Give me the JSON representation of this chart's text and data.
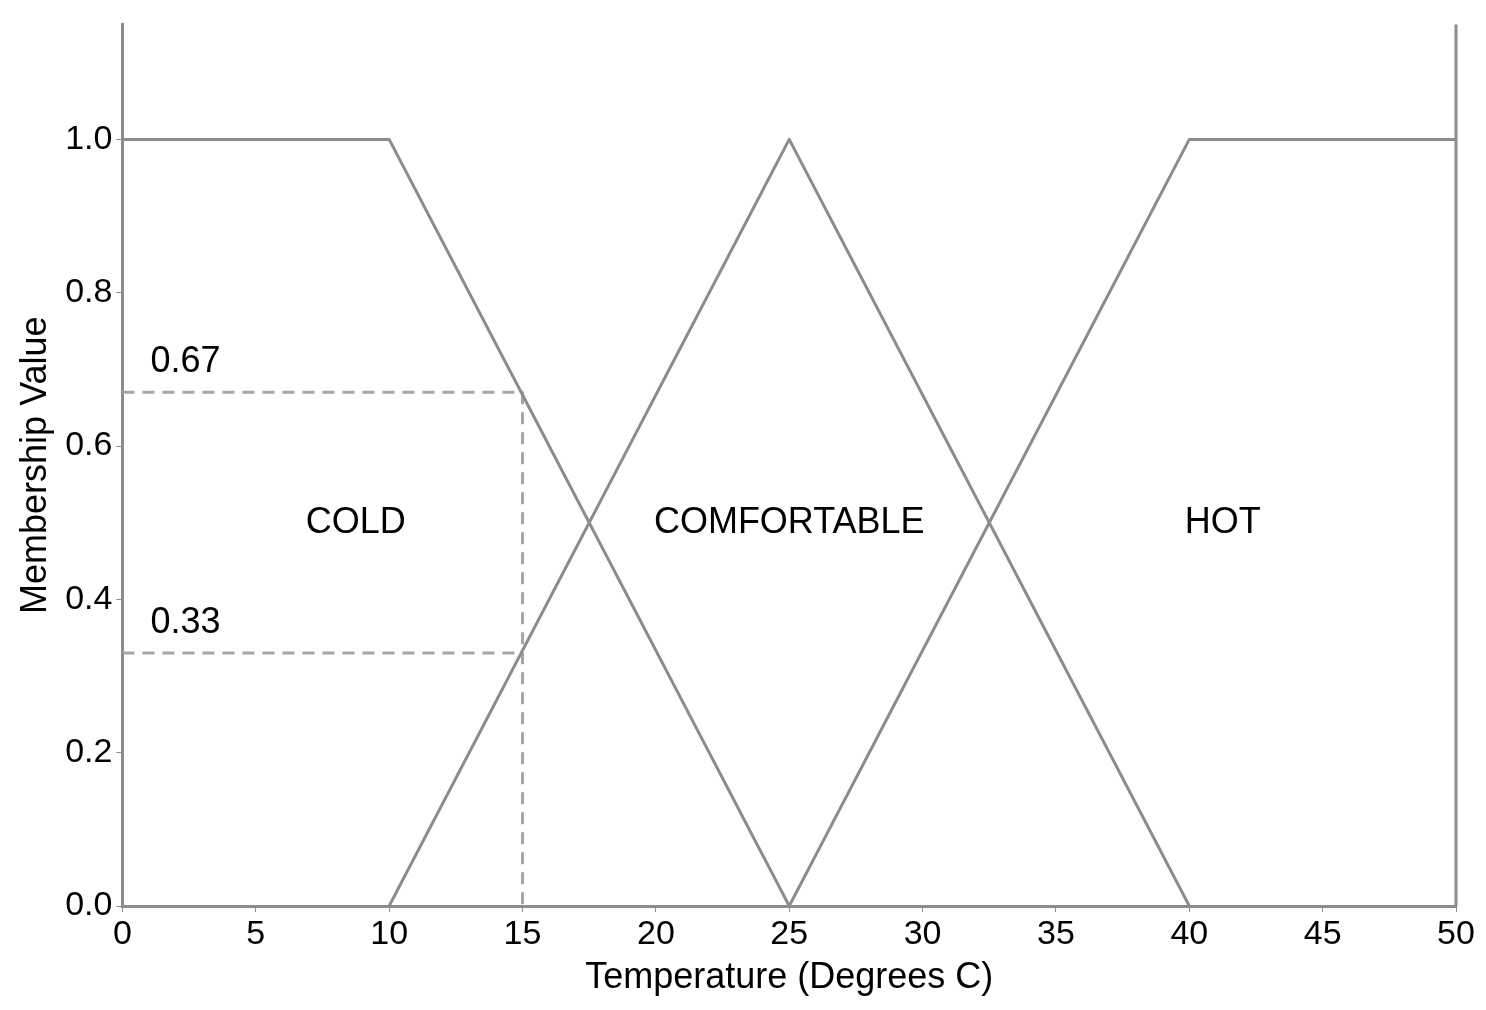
{
  "chart_data": {
    "type": "line",
    "xlabel": "Temperature (Degrees C)",
    "ylabel": "Membership Value",
    "xlim": [
      0,
      50
    ],
    "xticks": [
      0,
      5,
      10,
      15,
      20,
      25,
      30,
      35,
      40,
      45,
      50
    ],
    "ylim": [
      0,
      1.15
    ],
    "yticks": [
      {
        "value": 0,
        "label": "0.0"
      },
      {
        "value": 0.2,
        "label": "0.2"
      },
      {
        "value": 0.4,
        "label": "0.4"
      },
      {
        "value": 0.6,
        "label": "0.6"
      },
      {
        "value": 0.8,
        "label": "0.8"
      },
      {
        "value": 1,
        "label": "1.0"
      }
    ],
    "grid": false,
    "legend": false,
    "marker": "none",
    "line_style": "solid",
    "series": [
      {
        "color": "#8c8c8c",
        "x": [
          0,
          10,
          25
        ],
        "values": [
          1,
          1,
          0
        ]
      },
      {
        "color": "#8c8c8c",
        "x": [
          10,
          25,
          40
        ],
        "values": [
          0,
          1,
          0
        ]
      },
      {
        "color": "#8c8c8c",
        "x": [
          25,
          40,
          50
        ],
        "values": [
          0,
          1,
          1
        ]
      },
      {
        "color": "#a6a6a6",
        "line_style": "dashed",
        "x": [
          0,
          15,
          15
        ],
        "values": [
          0.67,
          0.67,
          0
        ]
      },
      {
        "color": "#a6a6a6",
        "line_style": "dashed",
        "x": [
          0,
          15
        ],
        "values": [
          0.33,
          0.33
        ]
      }
    ],
    "annotations": [
      "COLD",
      "COMFORTABLE",
      "HOT",
      "0.67",
      "0.33"
    ],
    "ref_lines": [
      {
        "axis": "x",
        "value": 50,
        "color": "#8c8c8c"
      }
    ]
  }
}
